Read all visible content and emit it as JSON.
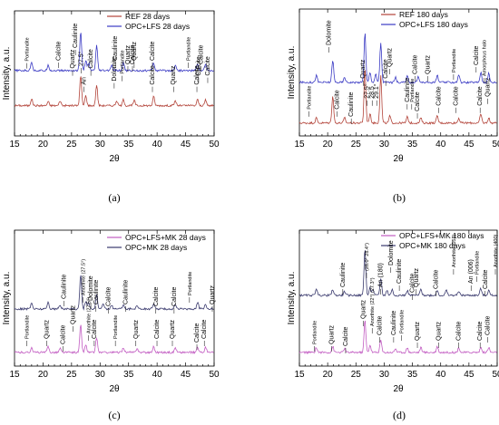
{
  "chart_data": [
    {
      "type": "line",
      "panel_label": "(a)",
      "xlabel": "2θ",
      "ylabel": "Intensity, a.u.",
      "xlim": [
        15,
        50
      ],
      "xticks": [
        15,
        20,
        25,
        30,
        35,
        40,
        45,
        50
      ],
      "series": [
        {
          "name": "REF 28 days",
          "color": "#b3443a",
          "peaks": [
            [
              18.0,
              14
            ],
            [
              20.9,
              8
            ],
            [
              23.0,
              10
            ],
            [
              26.6,
              60
            ],
            [
              27.5,
              20
            ],
            [
              29.4,
              42
            ],
            [
              32.9,
              10
            ],
            [
              34.1,
              12
            ],
            [
              36.0,
              10
            ],
            [
              39.4,
              18
            ],
            [
              43.2,
              10
            ],
            [
              47.1,
              12
            ],
            [
              48.5,
              11
            ]
          ]
        },
        {
          "name": "OPC+LFS 28 days",
          "color": "#3b3bc4",
          "peaks": [
            [
              18.0,
              18
            ],
            [
              20.9,
              12
            ],
            [
              26.6,
              80
            ],
            [
              27.5,
              20
            ],
            [
              28.0,
              15
            ],
            [
              29.4,
              50
            ],
            [
              32.0,
              10
            ],
            [
              34.1,
              16
            ],
            [
              39.4,
              15
            ],
            [
              43.2,
              12
            ],
            [
              47.1,
              14
            ],
            [
              48.5,
              13
            ]
          ]
        }
      ],
      "annotations": [
        "Portlandite",
        "Quartz",
        "Calcite",
        "An",
        "Dolomite",
        "Portlandite",
        "Calcite",
        "Quartz",
        "Calcite",
        "Calcite",
        "Calcite",
        "Quartz",
        "Caulinite",
        "Calcite",
        "Caulinite",
        "Quartz",
        "Calcite",
        "Calcite",
        "Portlandite",
        "Calcite",
        "27.5°"
      ]
    },
    {
      "type": "line",
      "panel_label": "(b)",
      "xlabel": "2θ",
      "ylabel": "Intensity, a.u.",
      "xlim": [
        15,
        50
      ],
      "xticks": [
        15,
        20,
        25,
        30,
        35,
        40,
        45,
        50
      ],
      "series": [
        {
          "name": "REF 180 days",
          "color": "#b3443a",
          "peaks": [
            [
              18.0,
              10
            ],
            [
              20.9,
              55
            ],
            [
              23.0,
              10
            ],
            [
              26.6,
              110
            ],
            [
              27.5,
              18
            ],
            [
              29.4,
              95
            ],
            [
              31.0,
              14
            ],
            [
              34.1,
              12
            ],
            [
              36.5,
              10
            ],
            [
              39.4,
              14
            ],
            [
              43.2,
              10
            ],
            [
              47.1,
              18
            ],
            [
              48.5,
              10
            ]
          ]
        },
        {
          "name": "OPC+LFS 180 days",
          "color": "#3b3bc4",
          "peaks": [
            [
              18.0,
              14
            ],
            [
              20.9,
              45
            ],
            [
              23.0,
              10
            ],
            [
              26.6,
              100
            ],
            [
              27.5,
              20
            ],
            [
              28.5,
              16
            ],
            [
              29.4,
              80
            ],
            [
              32.0,
              10
            ],
            [
              34.1,
              12
            ],
            [
              36.0,
              12
            ],
            [
              39.4,
              14
            ],
            [
              43.2,
              16
            ],
            [
              47.1,
              20
            ],
            [
              48.5,
              18
            ]
          ]
        }
      ],
      "annotations": [
        "Portlandite",
        "Calcite",
        "Caulinite",
        "Quartz",
        "27.5°",
        "28.5",
        "29.1°",
        "Calcite",
        "Caulinite",
        "Portlandite",
        "Calcite",
        "Calcite",
        "Calcite",
        "Calcite",
        "Quartz",
        "Dolomite",
        "Quartz",
        "Calcite",
        "Quartz",
        "Portlandite",
        "Calcite",
        "Amorphous halo"
      ]
    },
    {
      "type": "line",
      "panel_label": "(c)",
      "xlabel": "2θ",
      "ylabel": "Intensity, a.u.",
      "xlim": [
        15,
        50
      ],
      "xticks": [
        15,
        20,
        25,
        30,
        35,
        40,
        45,
        50
      ],
      "series": [
        {
          "name": "OPC+LFS+MK 28 days",
          "color": "#c25cc2",
          "peaks": [
            [
              18.0,
              10
            ],
            [
              20.9,
              12
            ],
            [
              23.0,
              8
            ],
            [
              26.6,
              55
            ],
            [
              27.5,
              15
            ],
            [
              29.4,
              30
            ],
            [
              34.1,
              10
            ],
            [
              36.5,
              9
            ],
            [
              39.4,
              12
            ],
            [
              43.2,
              10
            ],
            [
              47.1,
              12
            ],
            [
              48.5,
              10
            ]
          ]
        },
        {
          "name": "OPC+MK 28 days",
          "color": "#3a3a6e",
          "peaks": [
            [
              18.0,
              12
            ],
            [
              20.9,
              14
            ],
            [
              23.0,
              8
            ],
            [
              26.6,
              70
            ],
            [
              27.5,
              16
            ],
            [
              28.0,
              12
            ],
            [
              29.4,
              28
            ],
            [
              30.5,
              10
            ],
            [
              32.0,
              8
            ],
            [
              34.1,
              10
            ],
            [
              36.5,
              8
            ],
            [
              39.4,
              10
            ],
            [
              43.2,
              9
            ],
            [
              47.1,
              14
            ],
            [
              48.5,
              10
            ]
          ]
        }
      ],
      "annotations": [
        "Portlandite",
        "Quartz",
        "Calcite",
        "Quartz",
        "Anorthite (27.5°)",
        "Calcite",
        "Portlandite",
        "Quartz",
        "Calcite",
        "Quartz",
        "Calcite",
        "Calcite",
        "Caulinite",
        "Anorthite (27.5°)",
        "Dolomite",
        "Caulinite",
        "Calcite",
        "Caulinite",
        "Calcite",
        "Calcite",
        "Portlandite",
        "Quartz"
      ]
    },
    {
      "type": "line",
      "panel_label": "(d)",
      "xlabel": "2θ",
      "ylabel": "Intensity, a.u.",
      "xlim": [
        15,
        50
      ],
      "xticks": [
        15,
        20,
        25,
        30,
        35,
        40,
        45,
        50
      ],
      "series": [
        {
          "name": "OPC+LFS+MK 180 days",
          "color": "#c25cc2",
          "peaks": [
            [
              18.0,
              10
            ],
            [
              20.9,
              12
            ],
            [
              23.0,
              8
            ],
            [
              26.6,
              65
            ],
            [
              27.5,
              15
            ],
            [
              29.4,
              25
            ],
            [
              32.0,
              8
            ],
            [
              34.1,
              9
            ],
            [
              36.5,
              10
            ],
            [
              39.4,
              12
            ],
            [
              43.2,
              10
            ],
            [
              47.1,
              10
            ],
            [
              48.5,
              10
            ]
          ]
        },
        {
          "name": "OPC+MK 180 days",
          "color": "#3a3a6e",
          "peaks": [
            [
              18.0,
              14
            ],
            [
              20.9,
              12
            ],
            [
              23.0,
              8
            ],
            [
              26.6,
              95
            ],
            [
              27.5,
              14
            ],
            [
              28.0,
              12
            ],
            [
              29.4,
              35
            ],
            [
              30.5,
              10
            ],
            [
              31.4,
              12
            ],
            [
              34.1,
              10
            ],
            [
              36.5,
              12
            ],
            [
              39.4,
              10
            ],
            [
              41.0,
              10
            ],
            [
              43.2,
              9
            ],
            [
              47.1,
              14
            ],
            [
              48.5,
              10
            ]
          ]
        }
      ],
      "annotations": [
        "Portlandite",
        "Quartz",
        "Calcite",
        "Quartz",
        "Anorthite (22°) (27.3°)",
        "Calcite",
        "Caulinite",
        "Portlandite",
        "Quartz",
        "Quartz",
        "Calcite",
        "Calcite",
        "Calcite",
        "Caulinite",
        "(28.0° 28.4°)",
        "Dolomite",
        "An (180)",
        "Caulinite",
        "Calcite",
        "Quartz",
        "Calcite",
        "Anorthite (0̄53)",
        "An (006)",
        "Portlandite",
        "Calcite",
        "Anorthite (400)"
      ]
    }
  ]
}
